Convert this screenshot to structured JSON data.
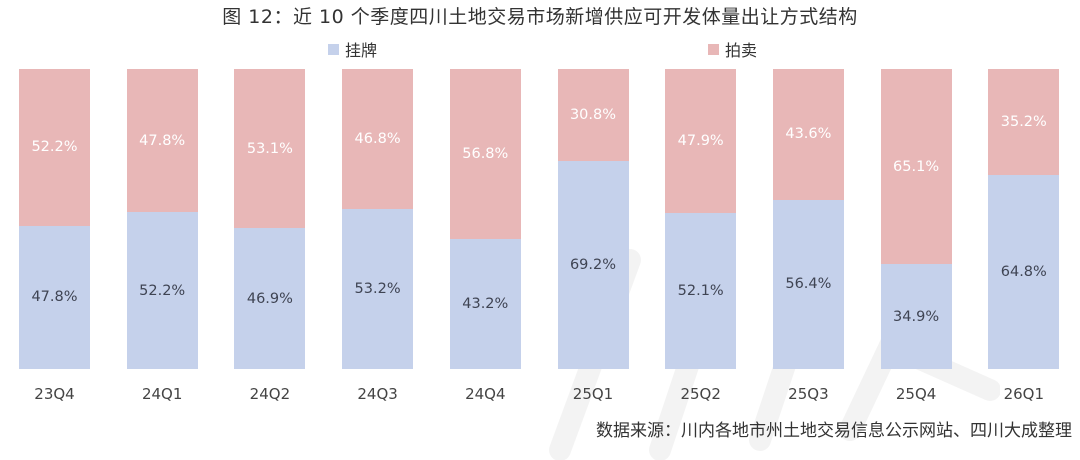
{
  "title": "图 12：近 10 个季度四川土地交易市场新增供应可开发体量出让方式结构",
  "legend": [
    {
      "label": "挂牌",
      "color": "#c5d1eb"
    },
    {
      "label": "拍卖",
      "color": "#e8b7b7"
    }
  ],
  "source": "数据来源：川内各地市州土地交易信息公示网站、四川大成整理",
  "chart_data": {
    "type": "bar",
    "stacked": true,
    "percent_stacked": true,
    "title": "图 12：近 10 个季度四川土地交易市场新增供应可开发体量出让方式结构",
    "xlabel": "",
    "ylabel": "",
    "ylim": [
      0,
      100
    ],
    "grid": false,
    "legend_position": "top",
    "categories": [
      "23Q4",
      "24Q1",
      "24Q2",
      "24Q3",
      "24Q4",
      "25Q1",
      "25Q2",
      "25Q3",
      "25Q4",
      "26Q1"
    ],
    "series": [
      {
        "name": "挂牌",
        "color": "#c5d1eb",
        "values": [
          47.8,
          52.2,
          46.9,
          53.2,
          43.2,
          69.2,
          52.1,
          56.4,
          34.9,
          64.8
        ],
        "labels": [
          "47.8%",
          "52.2%",
          "46.9%",
          "53.2%",
          "43.2%",
          "69.2%",
          "52.1%",
          "56.4%",
          "34.9%",
          "64.8%"
        ]
      },
      {
        "name": "拍卖",
        "color": "#e8b7b7",
        "values": [
          52.2,
          47.8,
          53.1,
          46.8,
          56.8,
          30.8,
          47.9,
          43.6,
          65.1,
          35.2
        ],
        "labels": [
          "52.2%",
          "47.8%",
          "53.1%",
          "46.8%",
          "56.8%",
          "30.8%",
          "47.9%",
          "43.6%",
          "65.1%",
          "35.2%"
        ]
      }
    ]
  }
}
